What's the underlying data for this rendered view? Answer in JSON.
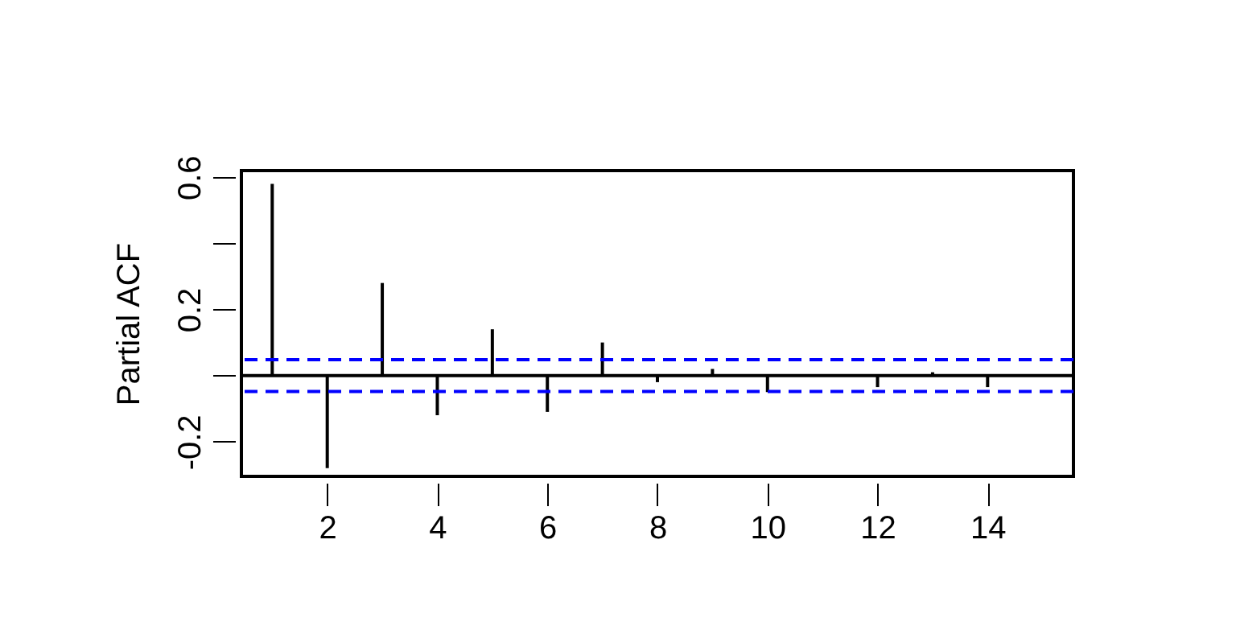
{
  "chart_data": {
    "type": "bar",
    "ylabel": "Partial ACF",
    "x": [
      1,
      2,
      3,
      4,
      5,
      6,
      7,
      8,
      9,
      10,
      11,
      12,
      13,
      14
    ],
    "values": [
      0.58,
      -0.28,
      0.28,
      -0.12,
      0.14,
      -0.11,
      0.1,
      -0.02,
      0.02,
      -0.05,
      0.0,
      -0.035,
      0.01,
      -0.035
    ],
    "color": "#000000",
    "xlim": [
      0.44,
      15.56
    ],
    "xticks": [
      2,
      4,
      6,
      8,
      10,
      12,
      14
    ],
    "ylim": [
      -0.305,
      0.62
    ],
    "yticks": [
      {
        "value": -0.2,
        "label": "-0.2"
      },
      {
        "value": 0,
        "label": null
      },
      {
        "value": 0.2,
        "label": "0.2"
      },
      {
        "value": 0.4,
        "label": null
      },
      {
        "value": 0.6,
        "label": "0.6"
      }
    ],
    "ref_lines": [
      {
        "axis": "y",
        "value": 0,
        "color": "#000000",
        "line_style": "solid"
      },
      {
        "axis": "y",
        "value": 0.048,
        "color": "#0000ff",
        "line_style": "dashed"
      },
      {
        "axis": "y",
        "value": -0.048,
        "color": "#0000ff",
        "line_style": "dashed"
      }
    ],
    "grid": false
  }
}
